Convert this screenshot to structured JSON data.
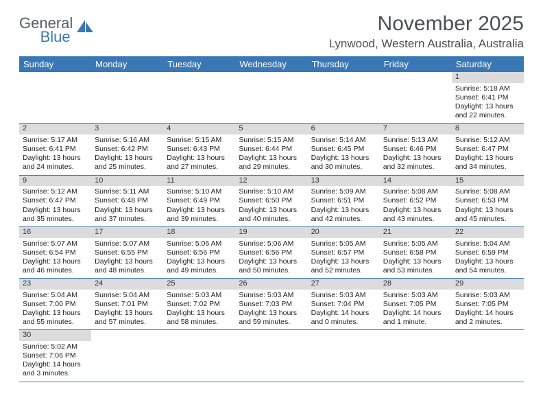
{
  "brand": {
    "name1": "General",
    "name2": "Blue"
  },
  "title": "November 2025",
  "location": "Lynwood, Western Australia, Australia",
  "colors": {
    "header_bg": "#3a78b5",
    "header_fg": "#ffffff",
    "daynum_bg": "#dcdcdc",
    "text": "#222222",
    "rule": "#3a78b5",
    "background": "#ffffff"
  },
  "typography": {
    "title_fontsize": 30,
    "location_fontsize": 17,
    "dayheader_fontsize": 13,
    "cell_fontsize": 10.5
  },
  "day_names": [
    "Sunday",
    "Monday",
    "Tuesday",
    "Wednesday",
    "Thursday",
    "Friday",
    "Saturday"
  ],
  "weeks": [
    [
      null,
      null,
      null,
      null,
      null,
      null,
      {
        "n": "1",
        "sunrise": "5:18 AM",
        "sunset": "6:41 PM",
        "daylight": "13 hours and 22 minutes."
      }
    ],
    [
      {
        "n": "2",
        "sunrise": "5:17 AM",
        "sunset": "6:41 PM",
        "daylight": "13 hours and 24 minutes."
      },
      {
        "n": "3",
        "sunrise": "5:16 AM",
        "sunset": "6:42 PM",
        "daylight": "13 hours and 25 minutes."
      },
      {
        "n": "4",
        "sunrise": "5:15 AM",
        "sunset": "6:43 PM",
        "daylight": "13 hours and 27 minutes."
      },
      {
        "n": "5",
        "sunrise": "5:15 AM",
        "sunset": "6:44 PM",
        "daylight": "13 hours and 29 minutes."
      },
      {
        "n": "6",
        "sunrise": "5:14 AM",
        "sunset": "6:45 PM",
        "daylight": "13 hours and 30 minutes."
      },
      {
        "n": "7",
        "sunrise": "5:13 AM",
        "sunset": "6:46 PM",
        "daylight": "13 hours and 32 minutes."
      },
      {
        "n": "8",
        "sunrise": "5:12 AM",
        "sunset": "6:47 PM",
        "daylight": "13 hours and 34 minutes."
      }
    ],
    [
      {
        "n": "9",
        "sunrise": "5:12 AM",
        "sunset": "6:47 PM",
        "daylight": "13 hours and 35 minutes."
      },
      {
        "n": "10",
        "sunrise": "5:11 AM",
        "sunset": "6:48 PM",
        "daylight": "13 hours and 37 minutes."
      },
      {
        "n": "11",
        "sunrise": "5:10 AM",
        "sunset": "6:49 PM",
        "daylight": "13 hours and 39 minutes."
      },
      {
        "n": "12",
        "sunrise": "5:10 AM",
        "sunset": "6:50 PM",
        "daylight": "13 hours and 40 minutes."
      },
      {
        "n": "13",
        "sunrise": "5:09 AM",
        "sunset": "6:51 PM",
        "daylight": "13 hours and 42 minutes."
      },
      {
        "n": "14",
        "sunrise": "5:08 AM",
        "sunset": "6:52 PM",
        "daylight": "13 hours and 43 minutes."
      },
      {
        "n": "15",
        "sunrise": "5:08 AM",
        "sunset": "6:53 PM",
        "daylight": "13 hours and 45 minutes."
      }
    ],
    [
      {
        "n": "16",
        "sunrise": "5:07 AM",
        "sunset": "6:54 PM",
        "daylight": "13 hours and 46 minutes."
      },
      {
        "n": "17",
        "sunrise": "5:07 AM",
        "sunset": "6:55 PM",
        "daylight": "13 hours and 48 minutes."
      },
      {
        "n": "18",
        "sunrise": "5:06 AM",
        "sunset": "6:56 PM",
        "daylight": "13 hours and 49 minutes."
      },
      {
        "n": "19",
        "sunrise": "5:06 AM",
        "sunset": "6:56 PM",
        "daylight": "13 hours and 50 minutes."
      },
      {
        "n": "20",
        "sunrise": "5:05 AM",
        "sunset": "6:57 PM",
        "daylight": "13 hours and 52 minutes."
      },
      {
        "n": "21",
        "sunrise": "5:05 AM",
        "sunset": "6:58 PM",
        "daylight": "13 hours and 53 minutes."
      },
      {
        "n": "22",
        "sunrise": "5:04 AM",
        "sunset": "6:59 PM",
        "daylight": "13 hours and 54 minutes."
      }
    ],
    [
      {
        "n": "23",
        "sunrise": "5:04 AM",
        "sunset": "7:00 PM",
        "daylight": "13 hours and 55 minutes."
      },
      {
        "n": "24",
        "sunrise": "5:04 AM",
        "sunset": "7:01 PM",
        "daylight": "13 hours and 57 minutes."
      },
      {
        "n": "25",
        "sunrise": "5:03 AM",
        "sunset": "7:02 PM",
        "daylight": "13 hours and 58 minutes."
      },
      {
        "n": "26",
        "sunrise": "5:03 AM",
        "sunset": "7:03 PM",
        "daylight": "13 hours and 59 minutes."
      },
      {
        "n": "27",
        "sunrise": "5:03 AM",
        "sunset": "7:04 PM",
        "daylight": "14 hours and 0 minutes."
      },
      {
        "n": "28",
        "sunrise": "5:03 AM",
        "sunset": "7:05 PM",
        "daylight": "14 hours and 1 minute."
      },
      {
        "n": "29",
        "sunrise": "5:03 AM",
        "sunset": "7:05 PM",
        "daylight": "14 hours and 2 minutes."
      }
    ],
    [
      {
        "n": "30",
        "sunrise": "5:02 AM",
        "sunset": "7:06 PM",
        "daylight": "14 hours and 3 minutes."
      },
      null,
      null,
      null,
      null,
      null,
      null
    ]
  ],
  "labels": {
    "sunrise_prefix": "Sunrise: ",
    "sunset_prefix": "Sunset: ",
    "daylight_prefix": "Daylight: "
  }
}
